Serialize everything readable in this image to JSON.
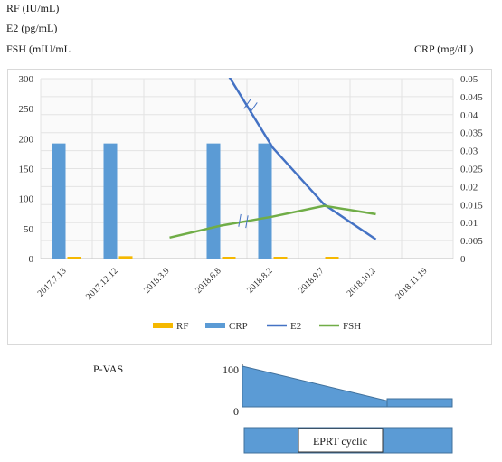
{
  "units": {
    "rf": "RF (IU/mL)",
    "e2": "E2 (pg/mL)",
    "fsh": "FSH (mIU/mL",
    "crp": "CRP (mg/dL)"
  },
  "chart_data": {
    "type": "bar+line",
    "categories": [
      "2017.7.13",
      "2017.12.12",
      "2018.3.9",
      "2018.6.8",
      "2018.8.2",
      "2018.9.7",
      "2018.10.2",
      "2018.11.19"
    ],
    "left_axis": {
      "ylim": [
        0,
        300
      ],
      "ticks": [
        "0",
        "50",
        "100",
        "150",
        "200",
        "250",
        "300"
      ]
    },
    "right_axis": {
      "ylim": [
        0,
        0.05
      ],
      "ticks": [
        "0",
        "0.005",
        "0.01",
        "0.015",
        "0.02",
        "0.025",
        "0.03",
        "0.035",
        "0.04",
        "0.045",
        "0.05"
      ]
    },
    "grid": true,
    "legend_position": "bottom",
    "series": [
      {
        "name": "RF",
        "kind": "bar",
        "axis": "left",
        "color": "#f5b800",
        "values": [
          3,
          4,
          null,
          3,
          3,
          3,
          null,
          null
        ]
      },
      {
        "name": "CRP",
        "kind": "bar",
        "axis": "left",
        "color": "#5b9bd5",
        "values": [
          192,
          192,
          null,
          192,
          192,
          null,
          null,
          null
        ]
      },
      {
        "name": "E2",
        "kind": "line",
        "axis": "left",
        "color": "#4472c4",
        "values": [
          null,
          null,
          null,
          325,
          185,
          90,
          32,
          null
        ]
      },
      {
        "name": "FSH",
        "kind": "line",
        "axis": "left",
        "color": "#70ad47",
        "values": [
          null,
          null,
          35,
          55,
          70,
          88,
          74,
          null
        ]
      }
    ],
    "axis_breaks": [
      "E2",
      "FSH"
    ]
  },
  "pvas": {
    "label": "P-VAS",
    "y_max": "100",
    "y_min": "0",
    "start_value": 100,
    "end_value": 0,
    "color": "#5b9bd5"
  },
  "eprt": {
    "label": "EPRT cyclic",
    "color": "#5b9bd5"
  }
}
